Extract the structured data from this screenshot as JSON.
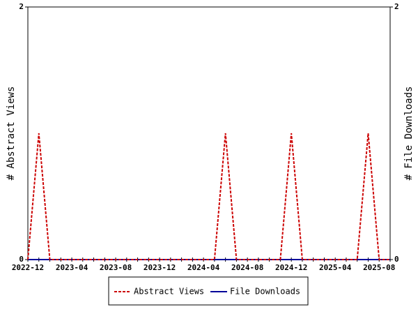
{
  "chart_data": {
    "type": "line",
    "x": [
      "2022-12",
      null,
      null,
      null,
      "2023-04",
      null,
      null,
      null,
      "2023-08",
      null,
      null,
      null,
      "2023-12",
      null,
      null,
      null,
      "2024-04",
      null,
      null,
      null,
      "2024-08",
      null,
      null,
      null,
      "2024-12",
      null,
      null,
      null,
      "2025-04",
      null,
      null,
      null,
      "2025-08",
      null
    ],
    "series": [
      {
        "name": "Abstract Views",
        "color": "#cc0000",
        "values": [
          0,
          1,
          0,
          0,
          0,
          0,
          0,
          0,
          0,
          0,
          0,
          0,
          0,
          0,
          0,
          0,
          0,
          0,
          1,
          0,
          0,
          0,
          0,
          0,
          1,
          0,
          0,
          0,
          0,
          0,
          0,
          1,
          0,
          0
        ]
      },
      {
        "name": "File Downloads",
        "color": "#000099",
        "axis": "y2",
        "values": [
          0,
          0,
          0,
          0,
          0,
          0,
          0,
          0,
          0,
          0,
          0,
          0,
          0,
          0,
          0,
          0,
          0,
          0,
          0,
          0,
          0,
          0,
          0,
          0,
          0,
          0,
          0,
          0,
          0,
          0,
          0,
          0,
          0,
          0
        ]
      }
    ],
    "y_label": "# Abstract Views",
    "y2_label": "# File Downloads",
    "ylim": [
      0,
      2
    ],
    "yticks": [
      0,
      2
    ],
    "y2lim": [
      0,
      2
    ],
    "y2ticks": [
      0,
      2
    ]
  }
}
